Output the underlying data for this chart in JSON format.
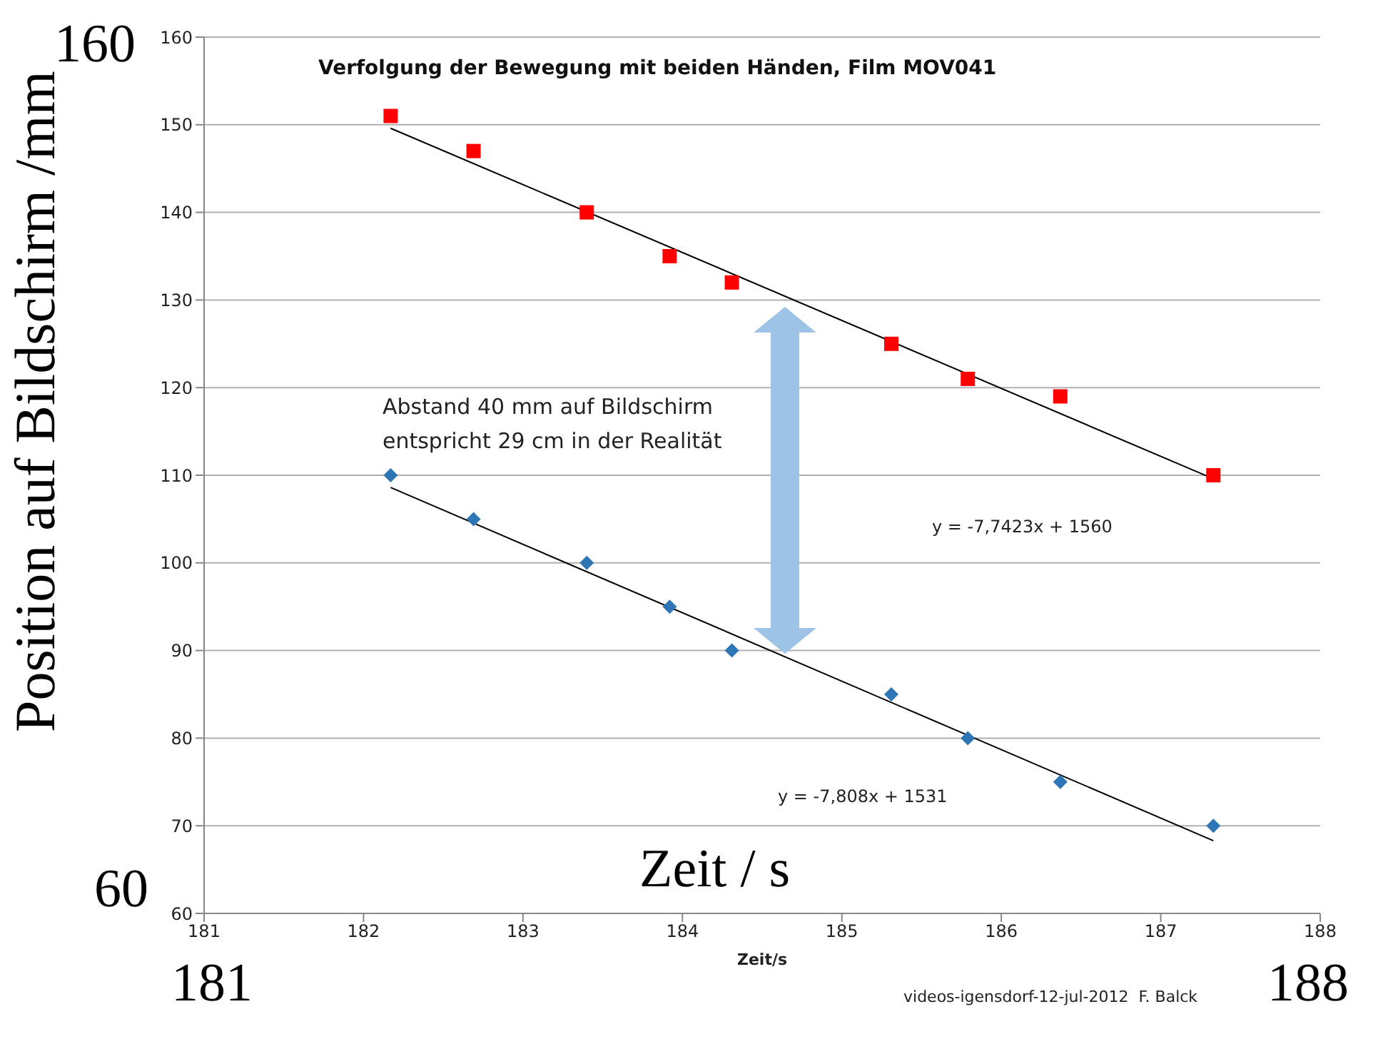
{
  "chart_data": {
    "type": "scatter",
    "title": "Verfolgung der Bewegung mit beiden Händen, Film MOV041",
    "xlabel": "Zeit/s",
    "ylabel": "Position auf Bildschirm /mm",
    "xlim": [
      181,
      188
    ],
    "xticks": [
      181,
      182,
      183,
      184,
      185,
      186,
      187,
      188
    ],
    "ylim": [
      60,
      160
    ],
    "yticks": [
      60,
      70,
      80,
      90,
      100,
      110,
      120,
      130,
      140,
      150,
      160
    ],
    "grid": "y",
    "legend": false,
    "series": [
      {
        "type": "scatter",
        "marker": "square",
        "color": "#ff0000",
        "x": [
          182.17,
          182.69,
          183.4,
          183.92,
          184.31,
          185.31,
          185.79,
          186.37,
          187.33
        ],
        "values": [
          151,
          147,
          140,
          135,
          132,
          125,
          121,
          119,
          110
        ]
      },
      {
        "type": "scatter",
        "marker": "diamond",
        "color": "#2e75b6",
        "x": [
          182.17,
          182.69,
          183.4,
          183.92,
          184.31,
          185.31,
          185.79,
          186.37,
          187.33
        ],
        "values": [
          110,
          105,
          100,
          95,
          90,
          85,
          80,
          75,
          70
        ]
      },
      {
        "type": "line",
        "marker": "none",
        "color": "#000000",
        "x": [
          182.17,
          187.33
        ],
        "values": [
          149.6,
          109.6
        ]
      },
      {
        "type": "line",
        "marker": "none",
        "color": "#000000",
        "x": [
          182.17,
          187.33
        ],
        "values": [
          108.6,
          68.3
        ]
      }
    ],
    "annotations": [
      "y = -7,7423x + 1560",
      "y = -7,808x + 1531",
      "Abstand 40 mm auf Bildschirm\nentspricht 29 cm in der Realität",
      "videos-igensdorf-12-jul-2012  F. Balck",
      "160",
      "60",
      "181",
      "188",
      "Zeit / s"
    ]
  }
}
